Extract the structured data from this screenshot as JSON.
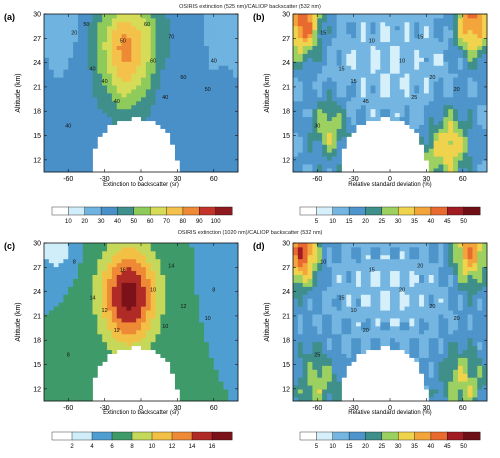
{
  "row_titles": [
    "OSIRIS extinction (525 nm)/CALIOP backscatter (532 nm)",
    "OSIRIS extinction (1020 nm)/CALIOP backscatter (532 nm)"
  ],
  "chart_data": [
    {
      "type": "heatmap",
      "panel_label": "(a)",
      "ylabel": "Altitude (km)",
      "x_ticks": [
        -60,
        -30,
        0,
        30,
        60
      ],
      "y_ticks": [
        12,
        15,
        18,
        21,
        24,
        27,
        30
      ],
      "xlim": [
        -80,
        80
      ],
      "ylim": [
        10.5,
        30
      ],
      "colorbar_label": "Extinction to backscatter (sr)",
      "levels": [
        10,
        20,
        30,
        40,
        50,
        60,
        70,
        80,
        90,
        100
      ],
      "colors": [
        "#ffffff",
        "#cfeefa",
        "#9fd6f2",
        "#6fb3e0",
        "#4a90c8",
        "#3f8f8a",
        "#55b064",
        "#8fcb5a",
        "#d6dc58",
        "#f4c14a",
        "#ee8a35",
        "#e05a2c",
        "#c4332a",
        "#8e1a1f"
      ],
      "contour_labels": [
        "20",
        "40",
        "50",
        "40",
        "60",
        "70",
        "60",
        "50",
        "40",
        "40",
        "40",
        "40",
        "50",
        "60"
      ],
      "model": {
        "kind": "ratio_a"
      }
    },
    {
      "type": "heatmap",
      "panel_label": "(b)",
      "ylabel": "Altitude (km)",
      "x_ticks": [
        -60,
        -30,
        0,
        30,
        60
      ],
      "y_ticks": [
        12,
        15,
        18,
        21,
        24,
        27,
        30
      ],
      "xlim": [
        -80,
        80
      ],
      "ylim": [
        10.5,
        30
      ],
      "colorbar_label": "Relative standard deviation (%)",
      "levels": [
        5,
        10,
        15,
        20,
        25,
        30,
        35,
        40,
        45,
        50
      ],
      "colors": [
        "#ffffff",
        "#d6f0fb",
        "#a8d8f2",
        "#74b6e1",
        "#4e95cb",
        "#3f8f8a",
        "#55b064",
        "#9cd060",
        "#f0d34c",
        "#f3a53c",
        "#e96a2f",
        "#d2392a",
        "#a01c22",
        "#6e0f17"
      ],
      "contour_labels": [
        "15",
        "15",
        "10",
        "15",
        "10",
        "15",
        "20",
        "20",
        "30",
        "45",
        "25"
      ],
      "model": {
        "kind": "rsd"
      }
    },
    {
      "type": "heatmap",
      "panel_label": "(c)",
      "ylabel": "Altitude (km)",
      "x_ticks": [
        -60,
        -30,
        0,
        30,
        60
      ],
      "y_ticks": [
        12,
        15,
        18,
        21,
        24,
        27,
        30
      ],
      "xlim": [
        -80,
        80
      ],
      "ylim": [
        10.5,
        30
      ],
      "colorbar_label": "Extinction to backscatter (sr)",
      "levels": [
        2,
        4,
        6,
        8,
        10,
        12,
        14,
        16
      ],
      "colors": [
        "#ffffff",
        "#cfeefa",
        "#8fcbe9",
        "#4f9ed2",
        "#3f9a6a",
        "#6fbd55",
        "#c6d85a",
        "#f3c046",
        "#ee8a35",
        "#d94a2a",
        "#b02a26",
        "#7c1219"
      ],
      "contour_labels": [
        "8",
        "14",
        "16",
        "12",
        "10",
        "14",
        "12",
        "10",
        "8",
        "12",
        "10",
        "8"
      ],
      "model": {
        "kind": "ratio_c"
      }
    },
    {
      "type": "heatmap",
      "panel_label": "(d)",
      "ylabel": "Altitude (km)",
      "x_ticks": [
        -60,
        -30,
        0,
        30,
        60
      ],
      "y_ticks": [
        12,
        15,
        18,
        21,
        24,
        27,
        30
      ],
      "xlim": [
        -80,
        80
      ],
      "ylim": [
        10.5,
        30
      ],
      "colorbar_label": "Relative standard deviation (%)",
      "levels": [
        5,
        10,
        15,
        20,
        25,
        30,
        35,
        40,
        45,
        50
      ],
      "colors": [
        "#ffffff",
        "#d6f0fb",
        "#a8d8f2",
        "#74b6e1",
        "#4e95cb",
        "#3f8f8a",
        "#55b064",
        "#9cd060",
        "#f0d34c",
        "#f3a53c",
        "#e96a2f",
        "#d2392a",
        "#a01c22",
        "#6e0f17"
      ],
      "contour_labels": [
        "10",
        "15",
        "15",
        "10",
        "20",
        "20",
        "20",
        "20",
        "25",
        "20"
      ],
      "model": {
        "kind": "rsd2"
      }
    }
  ]
}
